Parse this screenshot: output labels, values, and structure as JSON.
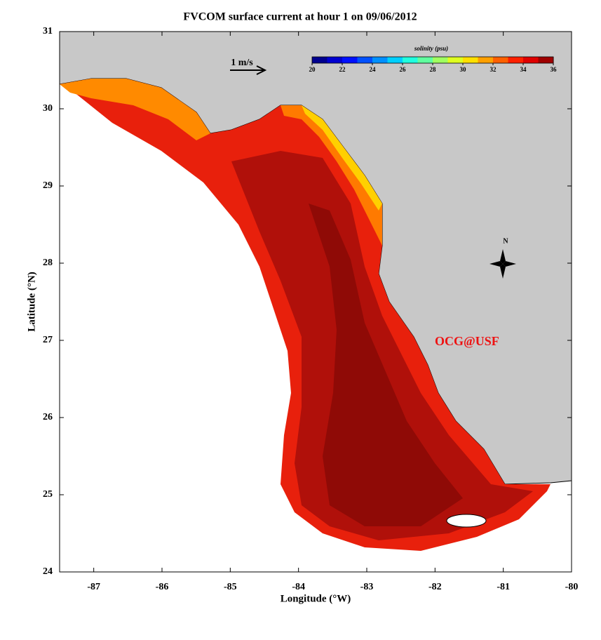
{
  "chart_data": {
    "type": "map",
    "title": "FVCOM surface current at hour 1 on 09/06/2012",
    "x_label": "Longitude (°W)",
    "y_label": "Latitude (°N)",
    "xlim": [
      -87.5,
      -80
    ],
    "ylim": [
      24,
      31
    ],
    "xticks": [
      -87,
      -86,
      -85,
      -84,
      -83,
      -82,
      -81,
      -80
    ],
    "yticks": [
      24,
      25,
      26,
      27,
      28,
      29,
      30,
      31
    ],
    "colorbar": {
      "label": "solinity (psu)",
      "lim": [
        20,
        36
      ],
      "ticks": [
        20,
        22,
        24,
        26,
        28,
        30,
        32,
        34,
        36
      ],
      "colors": [
        "#00008f",
        "#0000d0",
        "#0010ff",
        "#0050ff",
        "#0090ff",
        "#00d0ff",
        "#20ffdf",
        "#60ff9f",
        "#a0ff60",
        "#dfff20",
        "#ffe000",
        "#ffa000",
        "#ff6000",
        "#ff2000",
        "#df0000",
        "#9f0000"
      ]
    },
    "scale_arrow_label": "1 m/s",
    "compass_label": "N",
    "credit": "OCG@USF"
  }
}
